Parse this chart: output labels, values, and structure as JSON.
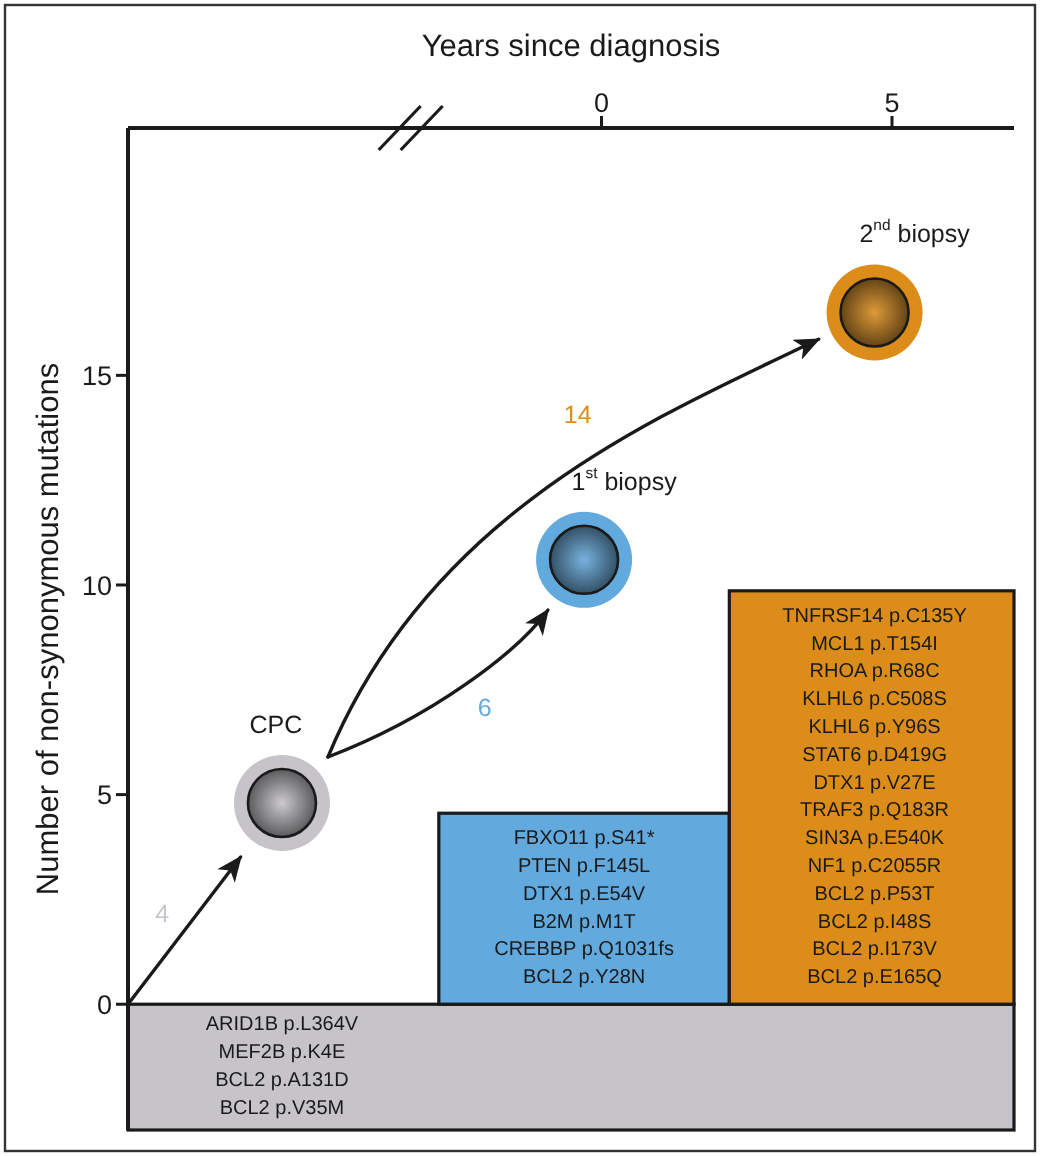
{
  "chart_data": {
    "type": "scatter",
    "xlabel": "Years since diagnosis",
    "ylabel": "Number of non-synonymous mutations",
    "series": [
      {
        "name": "CPC",
        "color": "#c6c4c8",
        "x": [
          -5.5
        ],
        "values": [
          4.8
        ]
      },
      {
        "name": "1$^{st}$ biopsy",
        "color": "#62a9de",
        "x": [
          -0.3
        ],
        "values": [
          10.6
        ]
      },
      {
        "name": "2$^{nd}$ biopsy",
        "color": "#dc8c18",
        "x": [
          4.7
        ],
        "values": [
          16.5
        ]
      }
    ],
    "marker": "circle",
    "xlim": [
      -8.15,
      7.1
    ],
    "xticks": [
      0,
      5
    ],
    "ylim": [
      -3,
      20.9
    ],
    "yticks": [
      0,
      5,
      10,
      15
    ],
    "annotations": [
      "4",
      "6",
      "14",
      "ARID1B p.L364V\nMEF2B p.K4E\nBCL2 p.A131D\nBCL2 p.V35M",
      "FBXO11 p.S41*\nPTEN p.F145L\nDTX1 p.E54V\nB2M p.M1T\nCREBBP p.Q1031fs\nBCL2 p.Y28N",
      "TNFRSF14 p.C135Y\nMCL1 p.T154I\nRHOA p.R68C\nKLHL6 p.C508S\nKLHL6 p.Y96S\nSTAT6 p.D419G\nDTX1 p.V27E\nTRAF3 p.Q183R\nSIN3A p.E540K\nNF1 p.C2055R\nBCL2 p.P53T\nBCL2 p.I48S\nBCL2 p.I173V\nBCL2 p.E165Q"
    ]
  }
}
